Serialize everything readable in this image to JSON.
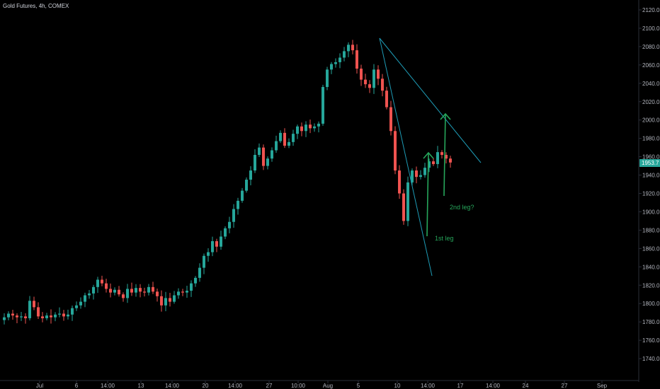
{
  "header": {
    "symbol_title": "Gold Futures, 4h, COMEX"
  },
  "colors": {
    "background": "#000000",
    "up_candle": "#26a69a",
    "down_candle": "#ef5350",
    "trendline": "#1e9bb5",
    "annotation": "#26a65b",
    "axis_line": "#2a2e39",
    "axis_text": "#b2b5be",
    "price_tag": "#26a69a"
  },
  "y_axis": {
    "ticks": [
      "2120.0",
      "2100.0",
      "2080.0",
      "2060.0",
      "2040.0",
      "2020.0",
      "2000.0",
      "1980.0",
      "1960.0",
      "1940.0",
      "1920.0",
      "1900.0",
      "1880.0",
      "1860.0",
      "1840.0",
      "1820.0",
      "1800.0",
      "1780.0",
      "1760.0",
      "1740.0"
    ]
  },
  "x_axis": {
    "ticks": [
      "Jul",
      "6",
      "14:00",
      "13",
      "14:00",
      "20",
      "14:00",
      "27",
      "10:00",
      "Aug",
      "5",
      "10",
      "14:00",
      "17",
      "14:00",
      "24",
      "27",
      "Sep"
    ]
  },
  "current_price": "1953.7",
  "annotations": {
    "first_leg": "1st leg",
    "second_leg": "2nd leg?"
  },
  "chart_data": {
    "type": "candlestick",
    "title": "Gold Futures, 4h, COMEX",
    "ylim": [
      1730,
      2130
    ],
    "close_path": [
      1785,
      1789,
      1787,
      1785,
      1786,
      1784,
      1803,
      1796,
      1786,
      1784,
      1787,
      1785,
      1788,
      1789,
      1786,
      1788,
      1795,
      1798,
      1802,
      1809,
      1811,
      1818,
      1826,
      1822,
      1816,
      1812,
      1815,
      1810,
      1806,
      1816,
      1812,
      1817,
      1813,
      1812,
      1818,
      1813,
      1808,
      1798,
      1806,
      1802,
      1809,
      1813,
      1812,
      1814,
      1822,
      1828,
      1839,
      1852,
      1856,
      1868,
      1862,
      1873,
      1882,
      1889,
      1903,
      1912,
      1923,
      1935,
      1945,
      1962,
      1970,
      1950,
      1958,
      1967,
      1977,
      1986,
      1972,
      1976,
      1985,
      1993,
      1988,
      1995,
      1991,
      1993,
      1996,
      2036,
      2055,
      2061,
      2063,
      2068,
      2075,
      2082,
      2076,
      2056,
      2044,
      2039,
      2035,
      2055,
      2045,
      2032,
      2014,
      1988,
      1945,
      1920,
      1890,
      1932,
      1945,
      1938,
      1940,
      1948,
      1955,
      1952,
      1965,
      1962,
      1958,
      1953.7
    ],
    "trendlines": [
      {
        "from": [
          2092,
          "Aug 7"
        ],
        "to": [
          1955,
          "Aug 21"
        ]
      },
      {
        "from": [
          2092,
          "Aug 7"
        ],
        "to": [
          1830,
          "Aug 15"
        ]
      }
    ],
    "arrows": [
      {
        "label": "1st leg",
        "from_price": 1876,
        "to_price": 1965
      },
      {
        "label": "2nd leg?",
        "from_price": 1917,
        "to_price": 2008
      }
    ]
  }
}
